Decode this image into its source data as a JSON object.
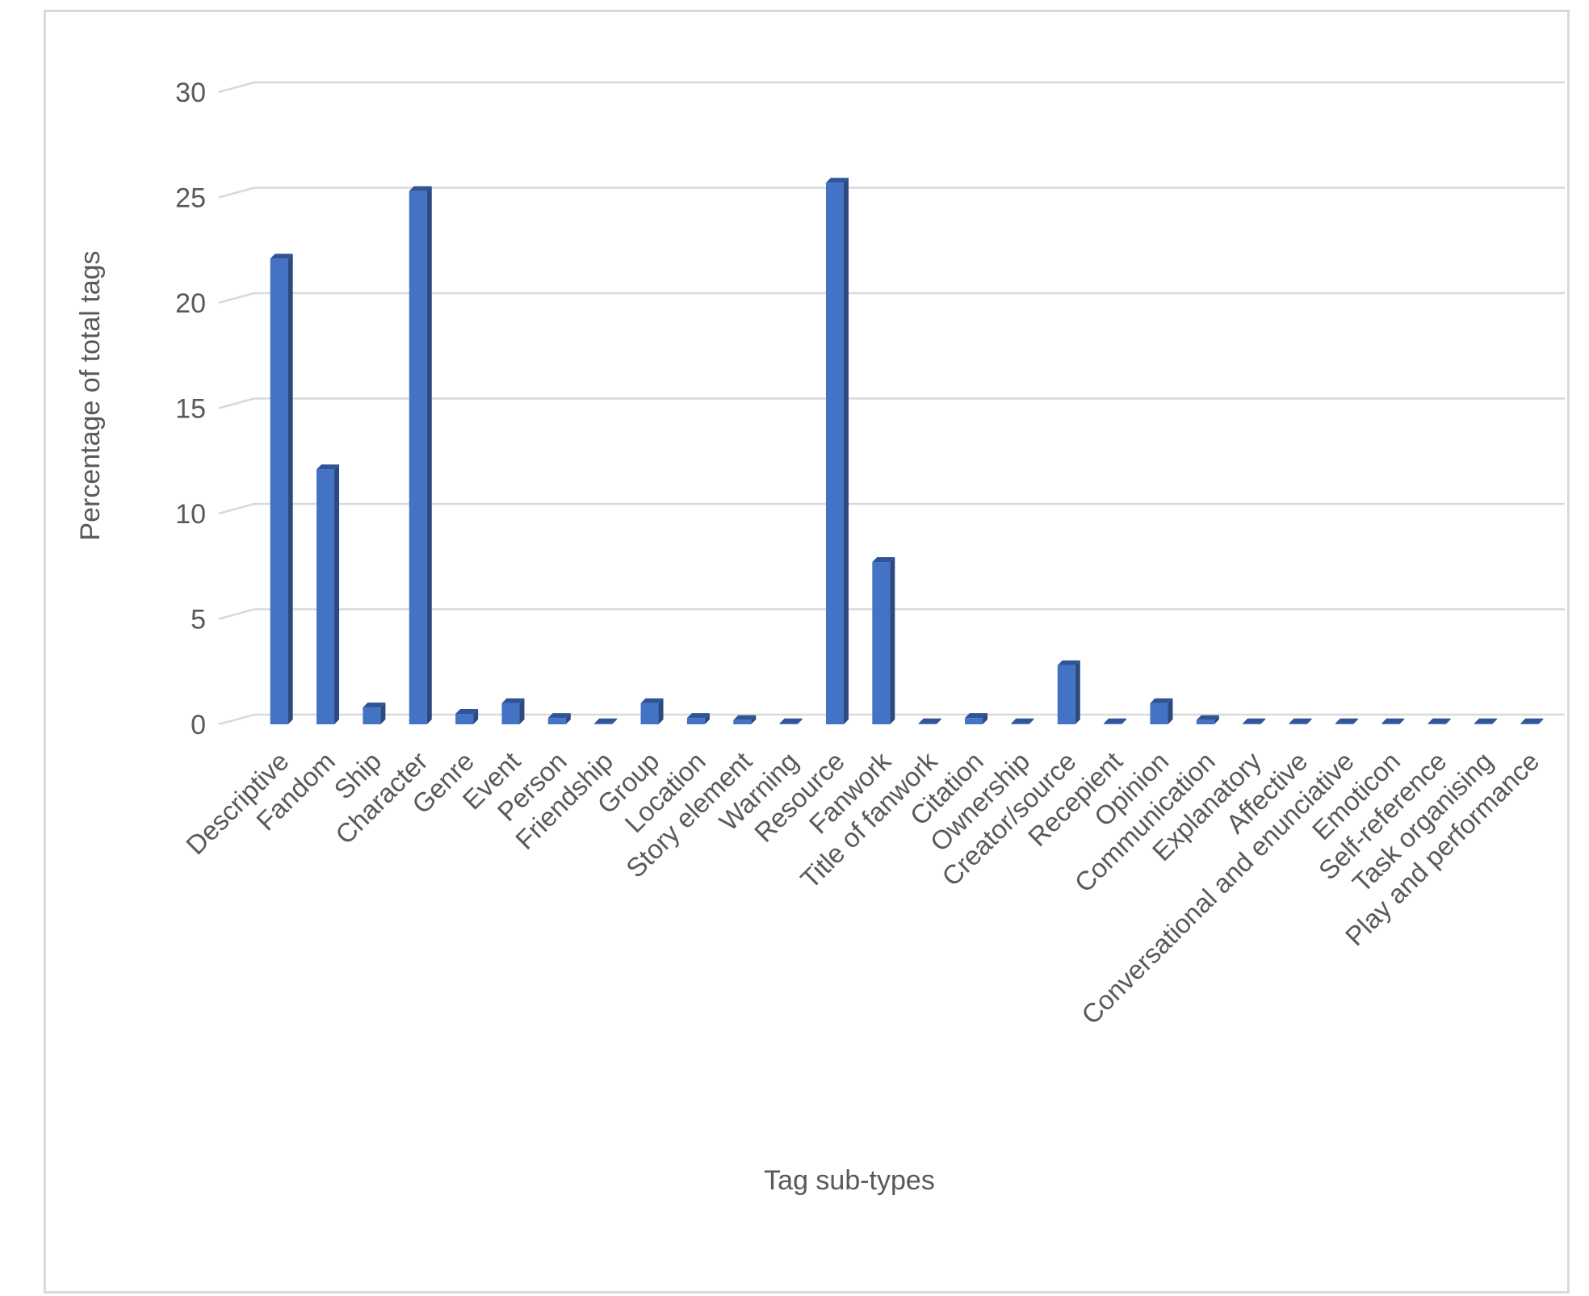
{
  "chart_data": {
    "type": "bar",
    "style": "3d-column",
    "xlabel": "Tag sub-types",
    "ylabel": "Percentage of total tags",
    "ylim": [
      0,
      30
    ],
    "yticks": [
      0,
      5,
      10,
      15,
      20,
      25,
      30
    ],
    "grid": true,
    "bar_color": "#4472C4",
    "bar_side_color": "#2B4A80",
    "bar_top_color": "#2F5597",
    "categories": [
      "Descriptive",
      "Fandom",
      "Ship",
      "Character",
      "Genre",
      "Event",
      "Person",
      "Friendship",
      "Group",
      "Location",
      "Story element",
      "Warning",
      "Resource",
      "Fanwork",
      "Title of fanwork",
      "Citation",
      "Ownership",
      "Creator/source",
      "Recepient",
      "Opinion",
      "Communication",
      "Explanatory",
      "Affective",
      "Conversational and enunciative",
      "Emoticon",
      "Self-reference",
      "Task organising",
      "Play and performance"
    ],
    "values": [
      22.1,
      12.1,
      0.8,
      25.3,
      0.5,
      1.0,
      0.3,
      0.05,
      1.0,
      0.3,
      0.2,
      0.05,
      25.7,
      7.7,
      0.05,
      0.3,
      0.05,
      2.8,
      0.05,
      1.0,
      0.2,
      0.05,
      0.05,
      0.05,
      0.05,
      0.05,
      0.05,
      0.05
    ]
  }
}
